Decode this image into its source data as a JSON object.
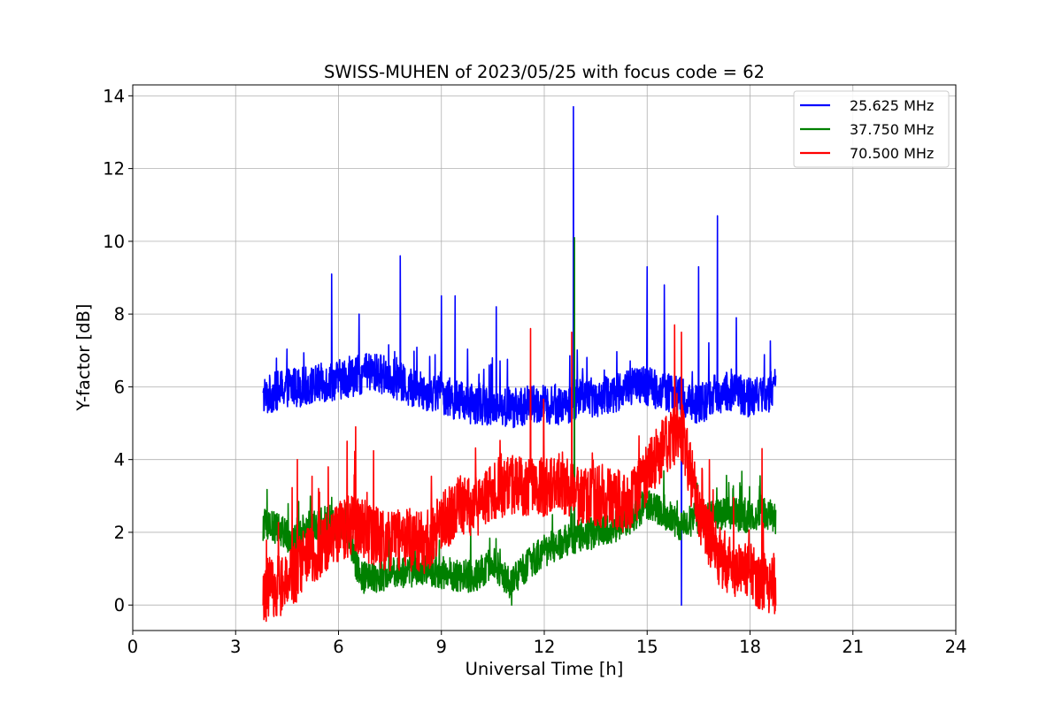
{
  "chart_data": {
    "type": "line",
    "title": "SWISS-MUHEN of 2023/05/25 with focus code = 62",
    "xlabel": "Universal Time [h]",
    "ylabel": "Y-factor [dB]",
    "xlim": [
      0,
      24
    ],
    "ylim": [
      -0.7,
      14.3
    ],
    "x_ticks": [
      0,
      3,
      6,
      9,
      12,
      15,
      18,
      21,
      24
    ],
    "y_ticks": [
      0,
      2,
      4,
      6,
      8,
      10,
      12,
      14
    ],
    "grid": true,
    "legend_position": "top-right",
    "series": [
      {
        "name": "25.625 MHz",
        "color": "#0000ff",
        "x": [
          3.8,
          4.0,
          4.5,
          5.0,
          5.5,
          6.0,
          6.5,
          7.0,
          7.5,
          8.0,
          8.5,
          9.0,
          9.5,
          10.0,
          10.5,
          11.0,
          11.5,
          12.0,
          12.5,
          12.9,
          13.0,
          13.5,
          14.0,
          14.5,
          15.0,
          15.5,
          16.0,
          16.5,
          17.0,
          17.5,
          18.0,
          18.5,
          18.75
        ],
        "y": [
          5.6,
          5.8,
          6.0,
          6.0,
          6.1,
          6.2,
          6.3,
          6.4,
          6.3,
          6.0,
          5.9,
          5.8,
          5.6,
          5.5,
          5.5,
          5.4,
          5.5,
          5.5,
          5.5,
          5.6,
          5.8,
          5.7,
          5.8,
          6.0,
          6.0,
          5.9,
          5.7,
          5.5,
          5.8,
          5.9,
          5.7,
          5.8,
          6.0
        ],
        "spikes": [
          [
            3.85,
            6.2
          ],
          [
            5.8,
            9.1
          ],
          [
            6.6,
            8.0
          ],
          [
            7.8,
            9.6
          ],
          [
            9.0,
            8.5
          ],
          [
            9.4,
            8.5
          ],
          [
            10.6,
            8.2
          ],
          [
            12.85,
            13.7
          ],
          [
            15.0,
            9.3
          ],
          [
            15.5,
            8.8
          ],
          [
            16.0,
            0.0
          ],
          [
            16.5,
            9.3
          ],
          [
            17.05,
            10.7
          ],
          [
            17.6,
            7.9
          ]
        ]
      },
      {
        "name": "37.750 MHz",
        "color": "#008000",
        "x": [
          3.8,
          4.2,
          4.7,
          5.2,
          5.8,
          6.3,
          6.6,
          7.0,
          7.5,
          8.0,
          8.5,
          9.0,
          9.5,
          10.0,
          10.5,
          11.0,
          11.5,
          12.0,
          12.5,
          13.0,
          13.5,
          14.0,
          14.5,
          15.0,
          15.5,
          16.0,
          16.5,
          17.0,
          17.5,
          18.0,
          18.5,
          18.75
        ],
        "y": [
          2.2,
          2.1,
          1.8,
          2.2,
          2.3,
          2.0,
          0.8,
          0.7,
          0.9,
          0.9,
          1.0,
          0.9,
          0.8,
          0.8,
          1.2,
          0.6,
          1.1,
          1.5,
          1.7,
          1.9,
          2.0,
          2.1,
          2.4,
          2.8,
          2.5,
          2.2,
          2.4,
          2.5,
          2.5,
          2.4,
          2.5,
          2.4
        ],
        "spikes": [
          [
            12.88,
            10.1
          ],
          [
            11.05,
            0.0
          ],
          [
            17.5,
            3.2
          ]
        ]
      },
      {
        "name": "70.500 MHz",
        "color": "#ff0000",
        "x": [
          3.8,
          4.0,
          4.5,
          5.0,
          5.5,
          6.0,
          6.5,
          7.0,
          7.5,
          8.0,
          8.5,
          9.0,
          9.5,
          10.0,
          10.5,
          11.0,
          11.5,
          12.0,
          12.5,
          13.0,
          13.5,
          14.0,
          14.5,
          15.0,
          15.5,
          16.0,
          16.5,
          17.0,
          17.5,
          18.0,
          18.5,
          18.75
        ],
        "y": [
          0.3,
          0.5,
          0.6,
          1.2,
          1.6,
          2.0,
          2.3,
          1.9,
          1.7,
          1.8,
          1.7,
          2.2,
          2.8,
          2.7,
          3.2,
          3.3,
          3.3,
          3.2,
          3.4,
          3.0,
          3.0,
          2.9,
          2.8,
          3.6,
          4.4,
          4.8,
          2.6,
          1.5,
          1.0,
          0.9,
          0.6,
          0.6
        ],
        "spikes": [
          [
            4.8,
            4.0
          ],
          [
            5.7,
            3.8
          ],
          [
            6.5,
            4.9
          ],
          [
            11.6,
            7.6
          ],
          [
            12.8,
            7.5
          ],
          [
            15.8,
            7.7
          ],
          [
            16.0,
            7.5
          ],
          [
            18.35,
            4.3
          ]
        ]
      }
    ]
  }
}
